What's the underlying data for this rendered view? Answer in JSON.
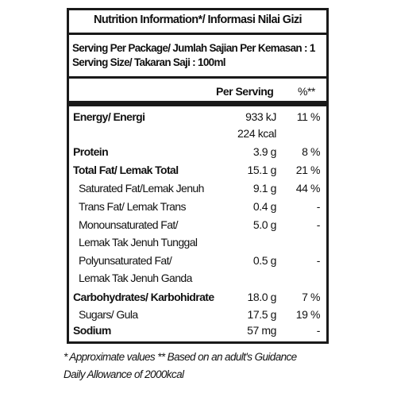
{
  "title": "Nutrition Information*/ Informasi Nilai Gizi",
  "serving_per_package": "Serving Per Package/ Jumlah Sajian Per Kemasan : 1",
  "serving_size": "Serving Size/ Takaran Saji : 100ml",
  "headers": {
    "per_serving": "Per Serving",
    "percent": "%**"
  },
  "rows": [
    {
      "name": "Energy/ Energi",
      "value": "933 kJ",
      "pct": "11 %",
      "value2": "224 kcal"
    },
    {
      "name": "Protein",
      "value": "3.9 g",
      "pct": "8 %"
    },
    {
      "name": "Total Fat/ Lemak Total",
      "value": "15.1 g",
      "pct": "21 %"
    },
    {
      "name": "Saturated Fat/Lemak Jenuh",
      "value": "9.1 g",
      "pct": "44 %"
    },
    {
      "name": "Trans Fat/ Lemak Trans",
      "value": "0.4 g",
      "pct": "-"
    },
    {
      "name": "Monounsaturated Fat/",
      "name2": "Lemak Tak Jenuh Tunggal",
      "value": "5.0 g",
      "pct": "-"
    },
    {
      "name": "Polyunsaturated Fat/",
      "name2": "Lemak Tak Jenuh Ganda",
      "value": "0.5 g",
      "pct": "-"
    },
    {
      "name": "Carbohydrates/ Karbohidrate",
      "value": "18.0 g",
      "pct": "7 %"
    },
    {
      "name": "Sugars/ Gula",
      "value": "17.5 g",
      "pct": "19 %"
    },
    {
      "name": "Sodium",
      "value": "57 mg",
      "pct": "-"
    }
  ],
  "footnote_line1": "* Approximate values  ** Based on an adult's Guidance",
  "footnote_line2": "Daily Allowance of 2000kcal"
}
